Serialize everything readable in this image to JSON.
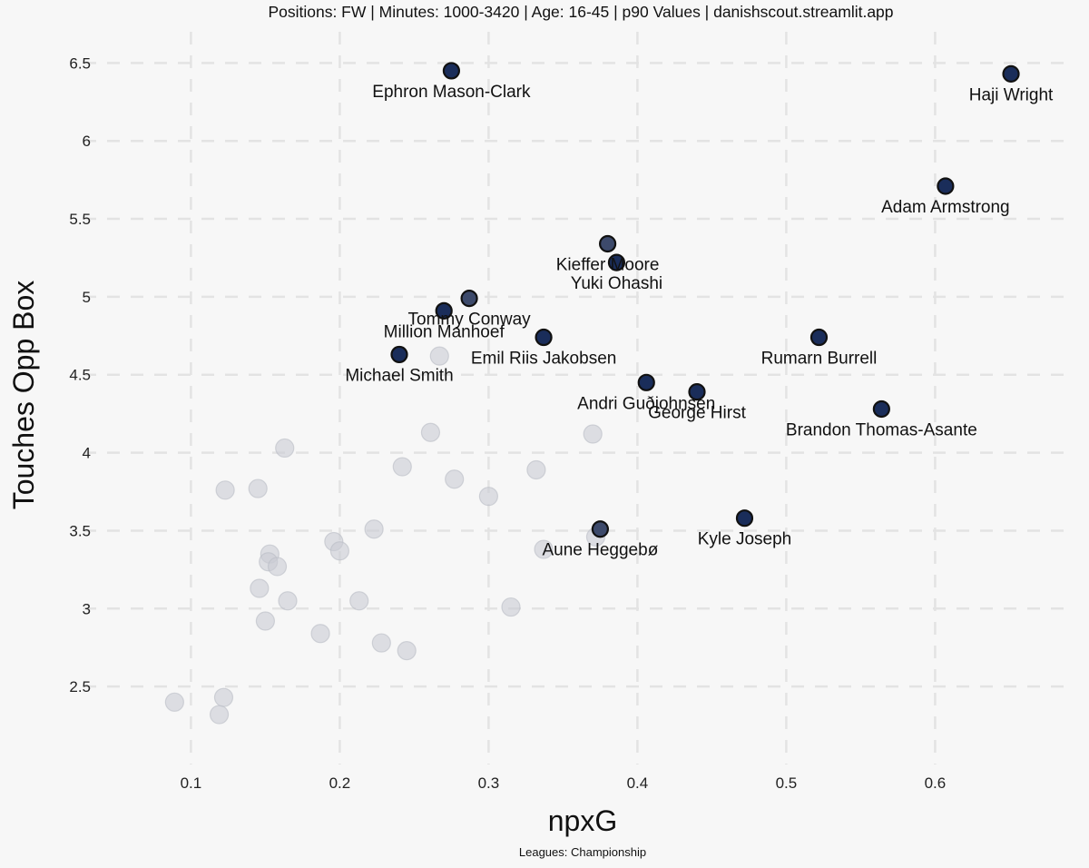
{
  "chart_data": {
    "type": "scatter",
    "title": "Positions: FW  | Minutes: 1000-3420 | Age: 16-45  | p90 Values | danishscout.streamlit.app",
    "xlabel": "npxG",
    "ylabel": "Touches Opp Box",
    "caption": "Leagues: Championship",
    "xlim": [
      0.04,
      0.69
    ],
    "ylim": [
      2.0,
      6.7
    ],
    "x_ticks": [
      0.1,
      0.2,
      0.3,
      0.4,
      0.5,
      0.6
    ],
    "x_tick_labels": [
      "0.1",
      "0.2",
      "0.3",
      "0.4",
      "0.5",
      "0.6"
    ],
    "y_ticks": [
      2.5,
      3,
      3.5,
      4,
      4.5,
      5,
      5.5,
      6,
      6.5
    ],
    "y_tick_labels": [
      "2.5",
      "3",
      "3.5",
      "4",
      "4.5",
      "5",
      "5.5",
      "6",
      "6.5"
    ],
    "grid": true,
    "highlight_colors": {
      "dark": "#1a2d5a",
      "mid": "#3d4a6b",
      "background": "#c9ccd4",
      "edge": "#111111"
    },
    "highlighted": [
      {
        "name": "Ephron Mason-Clark",
        "x": 0.275,
        "y": 6.45,
        "shade": "dark",
        "label_pos": "below"
      },
      {
        "name": "Haji Wright",
        "x": 0.651,
        "y": 6.43,
        "shade": "dark",
        "label_pos": "below"
      },
      {
        "name": "Adam Armstrong",
        "x": 0.607,
        "y": 5.71,
        "shade": "dark",
        "label_pos": "below"
      },
      {
        "name": "Kieffer Moore",
        "x": 0.38,
        "y": 5.34,
        "shade": "mid",
        "label_pos": "below"
      },
      {
        "name": "Yuki Ohashi",
        "x": 0.386,
        "y": 5.22,
        "shade": "dark",
        "label_pos": "below"
      },
      {
        "name": "Tommy Conway",
        "x": 0.287,
        "y": 4.99,
        "shade": "mid",
        "label_pos": "below"
      },
      {
        "name": "Million Manhoef",
        "x": 0.27,
        "y": 4.91,
        "shade": "dark",
        "label_pos": "below"
      },
      {
        "name": "Emil Riis Jakobsen",
        "x": 0.337,
        "y": 4.74,
        "shade": "dark",
        "label_pos": "below"
      },
      {
        "name": "Rumarn Burrell",
        "x": 0.522,
        "y": 4.74,
        "shade": "dark",
        "label_pos": "below"
      },
      {
        "name": "Michael Smith",
        "x": 0.24,
        "y": 4.63,
        "shade": "dark",
        "label_pos": "below"
      },
      {
        "name": "Andri Guðjohnsen",
        "x": 0.406,
        "y": 4.45,
        "shade": "dark",
        "label_pos": "below"
      },
      {
        "name": "George Hirst",
        "x": 0.44,
        "y": 4.39,
        "shade": "dark",
        "label_pos": "below"
      },
      {
        "name": "Brandon Thomas-Asante",
        "x": 0.564,
        "y": 4.28,
        "shade": "dark",
        "label_pos": "below"
      },
      {
        "name": "Kyle Joseph",
        "x": 0.472,
        "y": 3.58,
        "shade": "dark",
        "label_pos": "below"
      },
      {
        "name": "Aune Heggebø",
        "x": 0.375,
        "y": 3.51,
        "shade": "mid",
        "label_pos": "below"
      }
    ],
    "background_points": [
      {
        "x": 0.267,
        "y": 4.62
      },
      {
        "x": 0.261,
        "y": 4.13
      },
      {
        "x": 0.37,
        "y": 4.12
      },
      {
        "x": 0.163,
        "y": 4.03
      },
      {
        "x": 0.242,
        "y": 3.91
      },
      {
        "x": 0.332,
        "y": 3.89
      },
      {
        "x": 0.277,
        "y": 3.83
      },
      {
        "x": 0.123,
        "y": 3.76
      },
      {
        "x": 0.145,
        "y": 3.77
      },
      {
        "x": 0.3,
        "y": 3.72
      },
      {
        "x": 0.223,
        "y": 3.51
      },
      {
        "x": 0.372,
        "y": 3.46
      },
      {
        "x": 0.196,
        "y": 3.43
      },
      {
        "x": 0.2,
        "y": 3.37
      },
      {
        "x": 0.337,
        "y": 3.38
      },
      {
        "x": 0.153,
        "y": 3.35
      },
      {
        "x": 0.152,
        "y": 3.3
      },
      {
        "x": 0.158,
        "y": 3.27
      },
      {
        "x": 0.146,
        "y": 3.13
      },
      {
        "x": 0.165,
        "y": 3.05
      },
      {
        "x": 0.213,
        "y": 3.05
      },
      {
        "x": 0.315,
        "y": 3.01
      },
      {
        "x": 0.15,
        "y": 2.92
      },
      {
        "x": 0.187,
        "y": 2.84
      },
      {
        "x": 0.228,
        "y": 2.78
      },
      {
        "x": 0.245,
        "y": 2.73
      },
      {
        "x": 0.122,
        "y": 2.43
      },
      {
        "x": 0.089,
        "y": 2.4
      },
      {
        "x": 0.119,
        "y": 2.32
      }
    ]
  }
}
